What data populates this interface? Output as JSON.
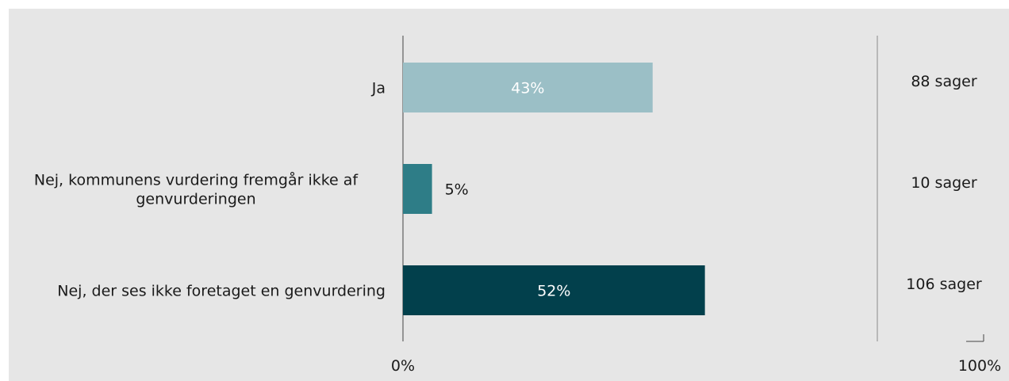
{
  "chart_data": {
    "type": "bar",
    "orientation": "horizontal",
    "categories": [
      [
        "Ja"
      ],
      [
        "Nej, kommunens vurdering fremgår ikke af",
        "genvurderingen"
      ],
      [
        "Nej, der ses ikke foretaget en genvurdering"
      ]
    ],
    "values": [
      43,
      5,
      52
    ],
    "value_labels": [
      "43%",
      "5%",
      "52%"
    ],
    "value_label_colors": [
      "#ffffff",
      "#1a1a1a",
      "#ffffff"
    ],
    "bar_colors": [
      "#9bbfc6",
      "#2e7d87",
      "#02404c"
    ],
    "counts": [
      "88 sager",
      "10 sager",
      "106 sager"
    ],
    "xlim": [
      0,
      100
    ],
    "tick_labels": [
      "0%",
      "100%"
    ],
    "background_color": "#e6e6e6",
    "grid": false,
    "legend": "none"
  }
}
